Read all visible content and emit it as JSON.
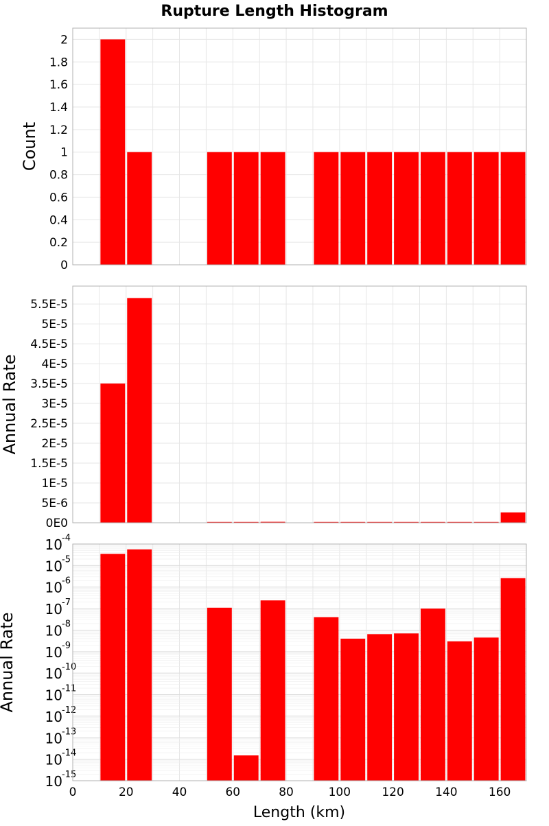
{
  "title": "Rupture Length Histogram",
  "xlabel": "Length (km)",
  "colors": {
    "bar": "#ff0000",
    "grid": "#e6e6e6",
    "frame": "#b0b0b0"
  },
  "x_ticks": [
    "0",
    "20",
    "40",
    "60",
    "80",
    "100",
    "120",
    "140",
    "160"
  ],
  "chart_data": [
    {
      "type": "bar",
      "ylabel": "Count",
      "xlim": [
        0,
        170
      ],
      "ylim": [
        0,
        2.1
      ],
      "grid": true,
      "bin_width": 10,
      "bin_centers": [
        15,
        25,
        35,
        45,
        55,
        65,
        75,
        85,
        95,
        105,
        115,
        125,
        135,
        145,
        155,
        165
      ],
      "values": [
        2,
        1,
        0,
        0,
        1,
        1,
        1,
        0,
        1,
        1,
        1,
        1,
        1,
        1,
        1,
        1
      ],
      "y_ticks": [
        "0",
        "0.2",
        "0.4",
        "0.6",
        "0.8",
        "1",
        "1.2",
        "1.4",
        "1.6",
        "1.8",
        "2"
      ]
    },
    {
      "type": "bar",
      "ylabel": "Annual Rate",
      "xlim": [
        0,
        170
      ],
      "ylim": [
        0,
        5.95e-05
      ],
      "grid": true,
      "bin_width": 10,
      "bin_centers": [
        15,
        25,
        35,
        45,
        55,
        65,
        75,
        85,
        95,
        105,
        115,
        125,
        135,
        145,
        155,
        165
      ],
      "values": [
        3.5e-05,
        5.65e-05,
        0,
        0,
        1.1e-07,
        1.5e-14,
        2.4e-07,
        0,
        4e-08,
        4e-09,
        6.5e-09,
        7e-09,
        1e-07,
        3e-09,
        4.5e-09,
        2.6e-06
      ],
      "y_ticks": [
        "0E0",
        "5E-6",
        "1E-5",
        "1.5E-5",
        "2E-5",
        "2.5E-5",
        "3E-5",
        "3.5E-5",
        "4E-5",
        "4.5E-5",
        "5E-5",
        "5.5E-5"
      ]
    },
    {
      "type": "bar",
      "ylabel": "Annual Rate",
      "xlim": [
        0,
        170
      ],
      "ylim": [
        1e-15,
        0.0001
      ],
      "yscale": "log",
      "grid": true,
      "bin_width": 10,
      "bin_centers": [
        15,
        25,
        35,
        45,
        55,
        65,
        75,
        85,
        95,
        105,
        115,
        125,
        135,
        145,
        155,
        165
      ],
      "values": [
        3.5e-05,
        5.65e-05,
        0,
        0,
        1.1e-07,
        1.5e-14,
        2.4e-07,
        0,
        4e-08,
        4e-09,
        6.5e-09,
        7e-09,
        1e-07,
        3e-09,
        4.5e-09,
        2.6e-06
      ],
      "y_tick_base": "10",
      "y_tick_exponents": [
        "-15",
        "-14",
        "-13",
        "-12",
        "-11",
        "-10",
        "-9",
        "-8",
        "-7",
        "-6",
        "-5",
        "-4"
      ]
    }
  ]
}
